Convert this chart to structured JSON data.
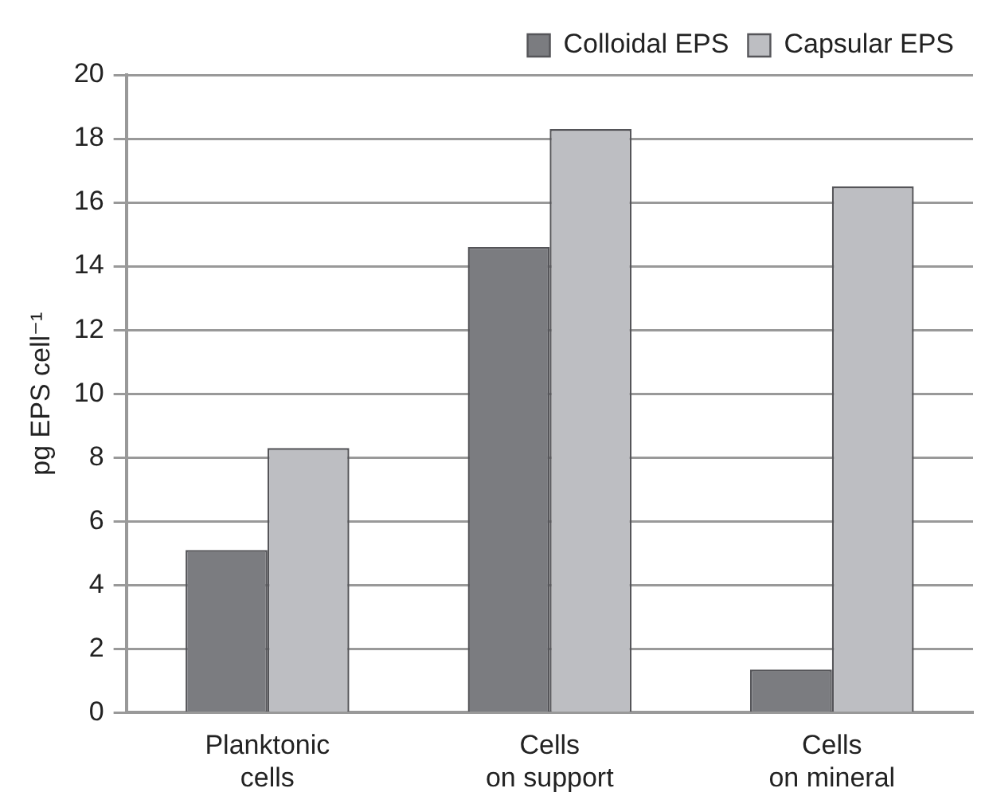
{
  "chart_data": {
    "type": "bar",
    "ylabel": "pg EPS cell⁻¹",
    "categories": [
      "Planktonic\ncells",
      "Cells\non support",
      "Cells\non mineral"
    ],
    "series": [
      {
        "name": "Colloidal EPS",
        "color": "#7b7c80",
        "values": [
          5.1,
          14.6,
          1.35
        ]
      },
      {
        "name": "Capsular EPS",
        "color": "#bdbec2",
        "values": [
          8.3,
          18.3,
          16.5
        ]
      }
    ],
    "ylim": [
      0,
      20
    ],
    "yticks": [
      0,
      2,
      4,
      6,
      8,
      10,
      12,
      14,
      16,
      18,
      20
    ],
    "grid": "y",
    "legend": "top right"
  }
}
